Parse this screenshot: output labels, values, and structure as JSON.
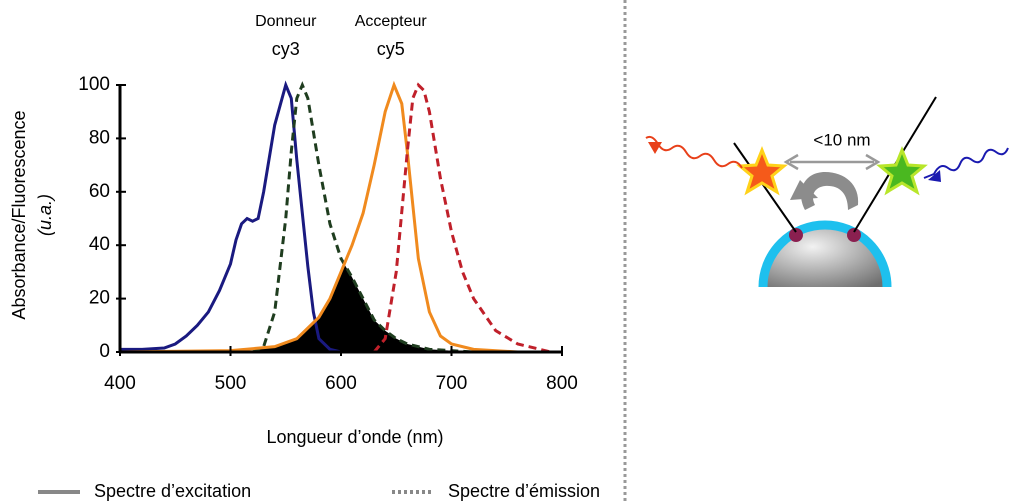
{
  "chart_data": {
    "type": "line",
    "ylabel": [
      "Absorbance/Fluorescence",
      "(u.a.)"
    ],
    "xlabel": "Longueur d’onde (nm)",
    "xlim": [
      400,
      800
    ],
    "xticks": [
      400,
      500,
      600,
      700,
      800
    ],
    "ylim": [
      0,
      100
    ],
    "yticks": [
      0,
      20,
      40,
      60,
      80,
      100
    ],
    "overlap_fill": true,
    "annotations": [
      {
        "lines": [
          "Donneur",
          "cy3"
        ],
        "x": 550
      },
      {
        "lines": [
          "Accepteur",
          "cy5"
        ],
        "x": 645
      }
    ],
    "legend": [
      {
        "label": "Spectre d’excitation",
        "dash": "solid"
      },
      {
        "label": "Spectre d’émission",
        "dash": "dotted"
      }
    ],
    "series": [
      {
        "color": "#1a1a80",
        "dash": "solid",
        "x": [
          400,
          420,
          440,
          450,
          460,
          470,
          480,
          490,
          500,
          505,
          510,
          515,
          520,
          525,
          530,
          540,
          550,
          555,
          560,
          570,
          575,
          580,
          590,
          600
        ],
        "values": [
          1,
          1,
          1.5,
          3,
          6,
          10,
          15,
          23,
          33,
          42,
          48,
          50,
          49,
          50,
          60,
          85,
          100,
          95,
          72,
          32,
          15,
          5,
          1,
          0
        ]
      },
      {
        "color": "#1f3d1f",
        "dash": "dashed",
        "x": [
          520,
          530,
          540,
          550,
          555,
          560,
          565,
          570,
          580,
          590,
          600,
          610,
          620,
          630,
          640,
          650,
          660,
          680,
          700,
          720
        ],
        "values": [
          0,
          2,
          15,
          50,
          75,
          95,
          100,
          95,
          70,
          48,
          35,
          28,
          20,
          12,
          8,
          5,
          3,
          1,
          0.5,
          0
        ]
      },
      {
        "color": "#f08a1e",
        "dash": "solid",
        "x": [
          400,
          500,
          540,
          560,
          580,
          590,
          600,
          610,
          620,
          630,
          640,
          648,
          655,
          660,
          670,
          680,
          690,
          700,
          720,
          760
        ],
        "values": [
          0,
          0.5,
          2,
          5,
          13,
          20,
          30,
          40,
          52,
          70,
          90,
          100,
          93,
          75,
          35,
          15,
          6,
          3,
          1,
          0
        ]
      },
      {
        "color": "#c0202a",
        "dash": "dashed",
        "x": [
          630,
          640,
          650,
          660,
          665,
          670,
          675,
          680,
          690,
          700,
          710,
          720,
          740,
          760,
          780,
          790
        ],
        "values": [
          0,
          5,
          30,
          75,
          95,
          100,
          98,
          90,
          65,
          45,
          30,
          20,
          8,
          3,
          1,
          0
        ]
      }
    ]
  },
  "diagram": {
    "distance_label": "<10 nm"
  }
}
